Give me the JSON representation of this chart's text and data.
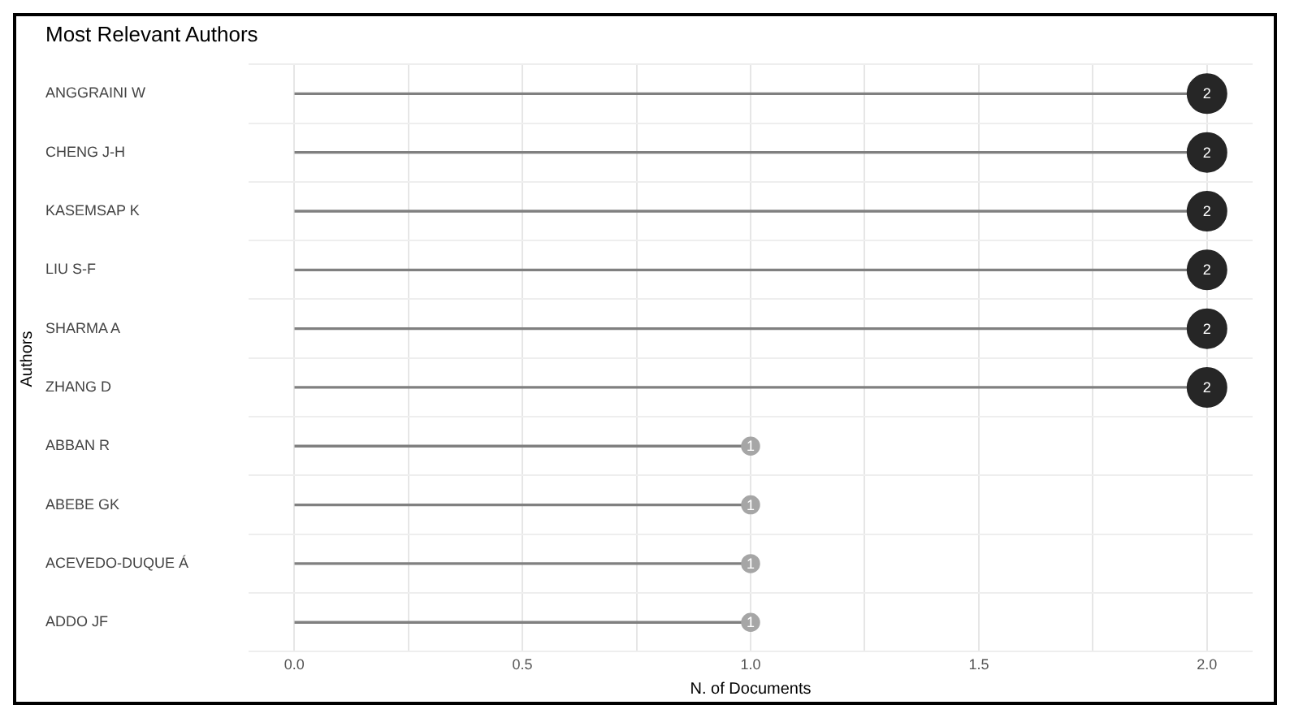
{
  "chart_data": {
    "type": "lollipop",
    "orientation": "horizontal",
    "title": "Most Relevant Authors",
    "xlabel": "N. of Documents",
    "ylabel": "Authors",
    "categories": [
      "ANGGRAINI W",
      "CHENG J-H",
      "KASEMSAP K",
      "LIU S-F",
      "SHARMA A",
      "ZHANG D",
      "ABBAN R",
      "ABEBE GK",
      "ACEVEDO-DUQUE Á",
      "ADDO JF"
    ],
    "values": [
      2,
      2,
      2,
      2,
      2,
      2,
      1,
      1,
      1,
      1
    ],
    "colors": [
      "#262626",
      "#262626",
      "#262626",
      "#262626",
      "#262626",
      "#262626",
      "#a6a6a6",
      "#a6a6a6",
      "#a6a6a6",
      "#a6a6a6"
    ],
    "sizes": [
      1,
      1,
      1,
      1,
      1,
      1,
      0.2,
      0.2,
      0.2,
      0.2
    ],
    "xlim": [
      -0.1,
      2.1
    ],
    "xticks": [
      {
        "value": 0,
        "label": "0.0"
      },
      {
        "value": 0.25,
        "label": null
      },
      {
        "value": 0.5,
        "label": "0.5"
      },
      {
        "value": 0.75,
        "label": null
      },
      {
        "value": 1,
        "label": "1.0"
      },
      {
        "value": 1.25,
        "label": null
      },
      {
        "value": 1.5,
        "label": "1.5"
      },
      {
        "value": 1.75,
        "label": null
      },
      {
        "value": 2,
        "label": "2.0"
      }
    ],
    "grid": true,
    "legend": false,
    "data_labels": true
  }
}
